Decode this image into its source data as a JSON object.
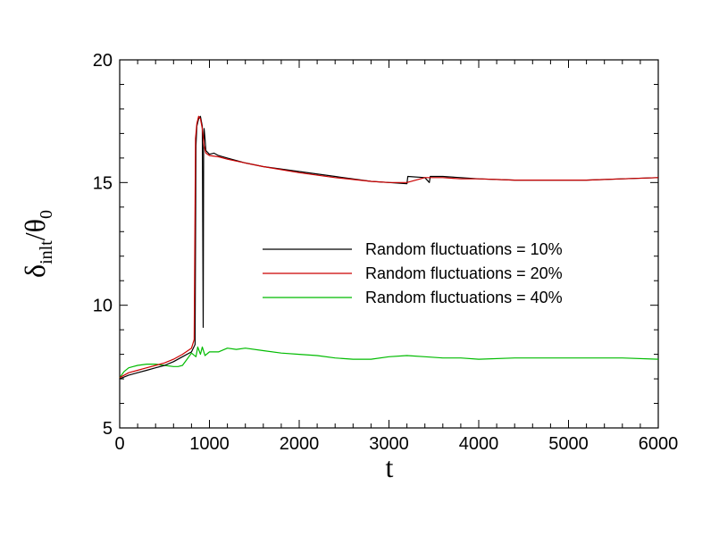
{
  "chart_data": {
    "type": "line",
    "title": "",
    "xlabel": "t",
    "ylabel": {
      "main": "δ",
      "subscript": "inlt",
      "slash": "/",
      "denominator": "θ",
      "denominator_subscript": "0"
    },
    "xlim": [
      0,
      6000
    ],
    "ylim": [
      5,
      20
    ],
    "xticks": [
      0,
      1000,
      2000,
      3000,
      4000,
      5000,
      6000
    ],
    "xtick_labels": [
      "0",
      "1000",
      "2000",
      "3000",
      "4000",
      "5000",
      "6000"
    ],
    "yticks": [
      5,
      10,
      15,
      20
    ],
    "ytick_labels": [
      "5",
      "10",
      "15",
      "20"
    ],
    "grid": false,
    "legend_position": "center-right",
    "series": [
      {
        "name": "Random fluctuations = 10%",
        "color": "#000000",
        "x": [
          0,
          100,
          200,
          300,
          400,
          500,
          600,
          700,
          800,
          840,
          850,
          860,
          880,
          900,
          920,
          930,
          935,
          940,
          950,
          960,
          1000,
          1050,
          1100,
          1200,
          1400,
          1600,
          2000,
          2400,
          2800,
          3000,
          3200,
          3210,
          3400,
          3450,
          3460,
          3600,
          3800,
          4000,
          4400,
          4800,
          5200,
          5600,
          6000
        ],
        "y": [
          7.0,
          7.15,
          7.25,
          7.35,
          7.45,
          7.55,
          7.7,
          7.9,
          8.1,
          8.4,
          16.5,
          17.3,
          17.6,
          17.7,
          17.3,
          9.1,
          16.4,
          17.2,
          16.8,
          16.3,
          16.15,
          16.2,
          16.1,
          16.0,
          15.8,
          15.65,
          15.45,
          15.25,
          15.05,
          15.0,
          14.95,
          15.25,
          15.2,
          15.0,
          15.25,
          15.25,
          15.2,
          15.15,
          15.1,
          15.1,
          15.1,
          15.15,
          15.2
        ]
      },
      {
        "name": "Random fluctuations = 20%",
        "color": "#cc0000",
        "x": [
          0,
          100,
          200,
          300,
          400,
          500,
          600,
          700,
          800,
          830,
          845,
          860,
          880,
          900,
          920,
          940,
          960,
          1000,
          1100,
          1200,
          1400,
          1600,
          2000,
          2400,
          2800,
          3000,
          3200,
          3400,
          3600,
          3800,
          4000,
          4400,
          4800,
          5200,
          5600,
          6000
        ],
        "y": [
          7.05,
          7.25,
          7.35,
          7.45,
          7.55,
          7.65,
          7.8,
          8.0,
          8.25,
          8.6,
          16.8,
          17.4,
          17.7,
          17.6,
          17.2,
          16.5,
          16.2,
          16.1,
          16.05,
          15.95,
          15.8,
          15.65,
          15.4,
          15.2,
          15.05,
          15.0,
          15.0,
          15.2,
          15.2,
          15.15,
          15.15,
          15.1,
          15.1,
          15.1,
          15.15,
          15.2
        ]
      },
      {
        "name": "Random fluctuations = 40%",
        "color": "#00bb00",
        "x": [
          0,
          50,
          100,
          150,
          200,
          300,
          400,
          500,
          600,
          650,
          700,
          750,
          800,
          850,
          870,
          900,
          920,
          950,
          1000,
          1100,
          1200,
          1300,
          1400,
          1600,
          1800,
          2000,
          2200,
          2400,
          2600,
          2800,
          3000,
          3200,
          3400,
          3600,
          3800,
          4000,
          4400,
          4800,
          5200,
          5600,
          6000
        ],
        "y": [
          7.05,
          7.3,
          7.45,
          7.5,
          7.55,
          7.6,
          7.6,
          7.55,
          7.5,
          7.5,
          7.55,
          7.8,
          8.05,
          7.9,
          8.3,
          8.0,
          8.3,
          7.95,
          8.1,
          8.1,
          8.25,
          8.2,
          8.25,
          8.15,
          8.05,
          8.0,
          7.95,
          7.85,
          7.8,
          7.8,
          7.9,
          7.95,
          7.9,
          7.85,
          7.85,
          7.8,
          7.85,
          7.85,
          7.85,
          7.85,
          7.8
        ]
      }
    ]
  }
}
